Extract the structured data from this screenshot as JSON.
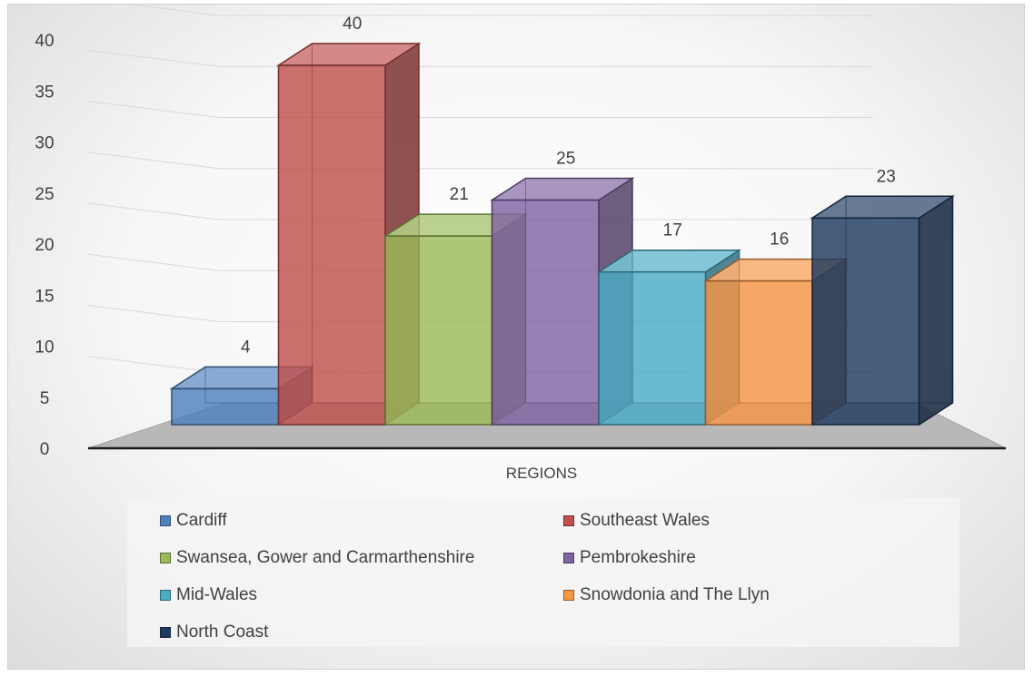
{
  "chart_data": {
    "type": "bar",
    "xlabel": "REGIONS",
    "ylim": [
      0,
      40
    ],
    "yticks": [
      0,
      5,
      10,
      15,
      20,
      25,
      30,
      35,
      40
    ],
    "grid": true,
    "legend_position": "bottom",
    "series": [
      {
        "name": "Cardiff",
        "value": 4,
        "color": "#4f81bd"
      },
      {
        "name": "Southeast Wales",
        "value": 40,
        "color": "#c0504d"
      },
      {
        "name": "Swansea, Gower and Carmarthenshire",
        "value": 21,
        "color": "#9bbb59"
      },
      {
        "name": "Pembrokeshire",
        "value": 25,
        "color": "#8064a2"
      },
      {
        "name": "Mid-Wales",
        "value": 17,
        "color": "#4bacc6"
      },
      {
        "name": "Snowdonia and The Llyn",
        "value": 16,
        "color": "#f79646"
      },
      {
        "name": "North Coast",
        "value": 23,
        "color": "#1f3a5f"
      }
    ]
  }
}
